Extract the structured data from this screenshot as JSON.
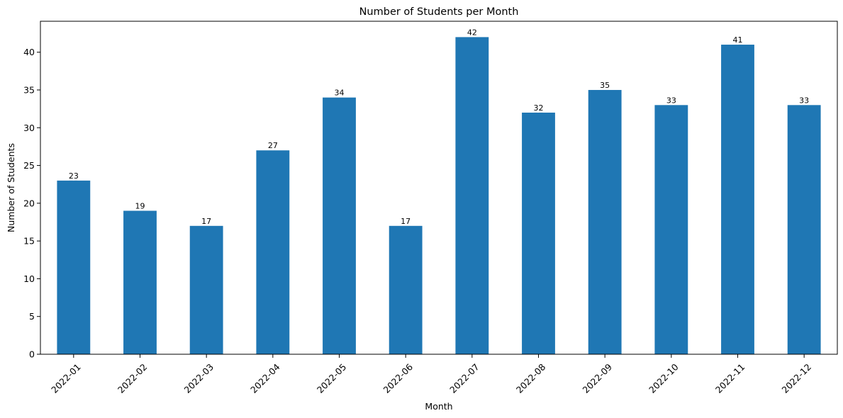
{
  "chart_data": {
    "type": "bar",
    "title": "Number of Students per Month",
    "xlabel": "Month",
    "ylabel": "Number of Students",
    "categories": [
      "2022-01",
      "2022-02",
      "2022-03",
      "2022-04",
      "2022-05",
      "2022-06",
      "2022-07",
      "2022-08",
      "2022-09",
      "2022-10",
      "2022-11",
      "2022-12"
    ],
    "values": [
      23,
      19,
      17,
      27,
      34,
      17,
      42,
      32,
      35,
      33,
      41,
      33
    ],
    "ylim": [
      0,
      44.1
    ],
    "yticks": [
      0,
      5,
      10,
      15,
      20,
      25,
      30,
      35,
      40
    ],
    "bar_color": "#1f77b4",
    "grid": false,
    "legend": false,
    "xtick_rotation": 45,
    "data_labels": true
  }
}
